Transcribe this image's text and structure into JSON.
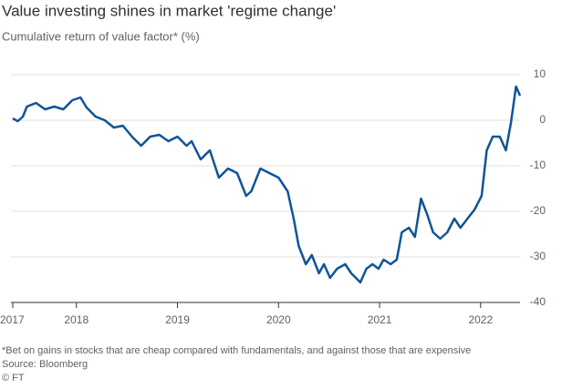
{
  "chart_data": {
    "type": "line",
    "title": "Value investing shines in market 'regime change'",
    "subtitle": "Cumulative return of value factor* (%)",
    "footnote": "*Bet on gains in stocks that are cheap compared with fundamentals, and against those that are expensive",
    "source": "Source: Bloomberg",
    "credit": "© FT",
    "x": [
      2017.37,
      2017.42,
      2017.47,
      2017.51,
      2017.6,
      2017.69,
      2017.78,
      2017.87,
      2017.96,
      2018.04,
      2018.1,
      2018.19,
      2018.28,
      2018.37,
      2018.46,
      2018.55,
      2018.64,
      2018.73,
      2018.82,
      2018.91,
      2019.0,
      2019.09,
      2019.14,
      2019.23,
      2019.32,
      2019.41,
      2019.5,
      2019.59,
      2019.68,
      2019.73,
      2019.82,
      2019.91,
      2020.0,
      2020.09,
      2020.15,
      2020.2,
      2020.27,
      2020.33,
      2020.4,
      2020.45,
      2020.51,
      2020.58,
      2020.66,
      2020.72,
      2020.81,
      2020.87,
      2020.93,
      2020.99,
      2021.04,
      2021.11,
      2021.17,
      2021.22,
      2021.29,
      2021.35,
      2021.41,
      2021.47,
      2021.53,
      2021.6,
      2021.67,
      2021.74,
      2021.8,
      2021.87,
      2021.94,
      2022.01,
      2022.06,
      2022.12,
      2022.19,
      2022.25,
      2022.3,
      2022.35,
      2022.37,
      2022.39
    ],
    "series": [
      {
        "name": "Value factor",
        "color": "#0f5499",
        "values": [
          0.4,
          -0.2,
          0.8,
          3,
          3.8,
          2.4,
          3,
          2.4,
          4.4,
          5,
          2.8,
          0.8,
          0,
          -1.6,
          -1.2,
          -3.6,
          -5.6,
          -3.6,
          -3.2,
          -4.6,
          -3.6,
          -5.6,
          -4.6,
          -8.6,
          -6.6,
          -12.6,
          -10.6,
          -11.6,
          -16.6,
          -15.6,
          -10.6,
          -11.6,
          -12.6,
          -15.6,
          -21.6,
          -27.6,
          -31.6,
          -29.6,
          -33.6,
          -31.6,
          -34.6,
          -32.6,
          -31.6,
          -33.6,
          -35.6,
          -32.6,
          -31.6,
          -32.6,
          -30.6,
          -31.6,
          -30.6,
          -24.6,
          -23.6,
          -25.6,
          -17.2,
          -20.6,
          -24.6,
          -26,
          -24.6,
          -21.6,
          -23.6,
          -21.6,
          -19.6,
          -16.6,
          -6.6,
          -3.6,
          -3.6,
          -6.6,
          -0.6,
          7.4,
          6.4,
          5.4
        ]
      }
    ],
    "xlim": [
      2017.37,
      2022.39
    ],
    "xticks": [
      {
        "value": 2017.37,
        "label": "2017"
      },
      2018,
      2019,
      2020,
      2021,
      2022
    ],
    "ylim": [
      -40,
      10
    ],
    "yticks": [
      10,
      0,
      -10,
      -20,
      -30,
      -40
    ],
    "grid": true
  }
}
